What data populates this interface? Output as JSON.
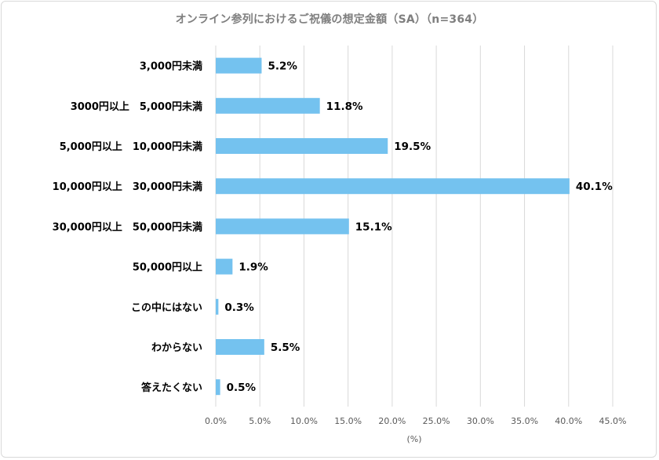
{
  "chart_data": {
    "type": "bar",
    "orientation": "horizontal",
    "title": "オンライン参列におけるご祝儀の想定金額（SA）（n=364）",
    "xlabel": "(%)",
    "ylabel": "",
    "xlim": [
      0,
      45
    ],
    "x_ticks": [
      0,
      5,
      10,
      15,
      20,
      25,
      30,
      35,
      40,
      45
    ],
    "x_tick_labels": [
      "0.0%",
      "5.0%",
      "10.0%",
      "15.0%",
      "20.0%",
      "25.0%",
      "30.0%",
      "35.0%",
      "40.0%",
      "45.0%"
    ],
    "categories": [
      "3,000円未満",
      "3000円以上　5,000円未満",
      "5,000円以上　10,000円未満",
      "10,000円以上　30,000円未満",
      "30,000円以上　50,000円未満",
      "50,000円以上",
      "この中にはない",
      "わからない",
      "答えたくない"
    ],
    "values": [
      5.2,
      11.8,
      19.5,
      40.1,
      15.1,
      1.9,
      0.3,
      5.5,
      0.5
    ],
    "data_labels": [
      "5.2%",
      "11.8%",
      "19.5%",
      "40.1%",
      "15.1%",
      "1.9%",
      "0.3%",
      "5.5%",
      "0.5%"
    ],
    "grid": "vertical",
    "legend": "none",
    "colors": {
      "bar": "#74c2ef",
      "grid": "#d9d9d9"
    }
  }
}
